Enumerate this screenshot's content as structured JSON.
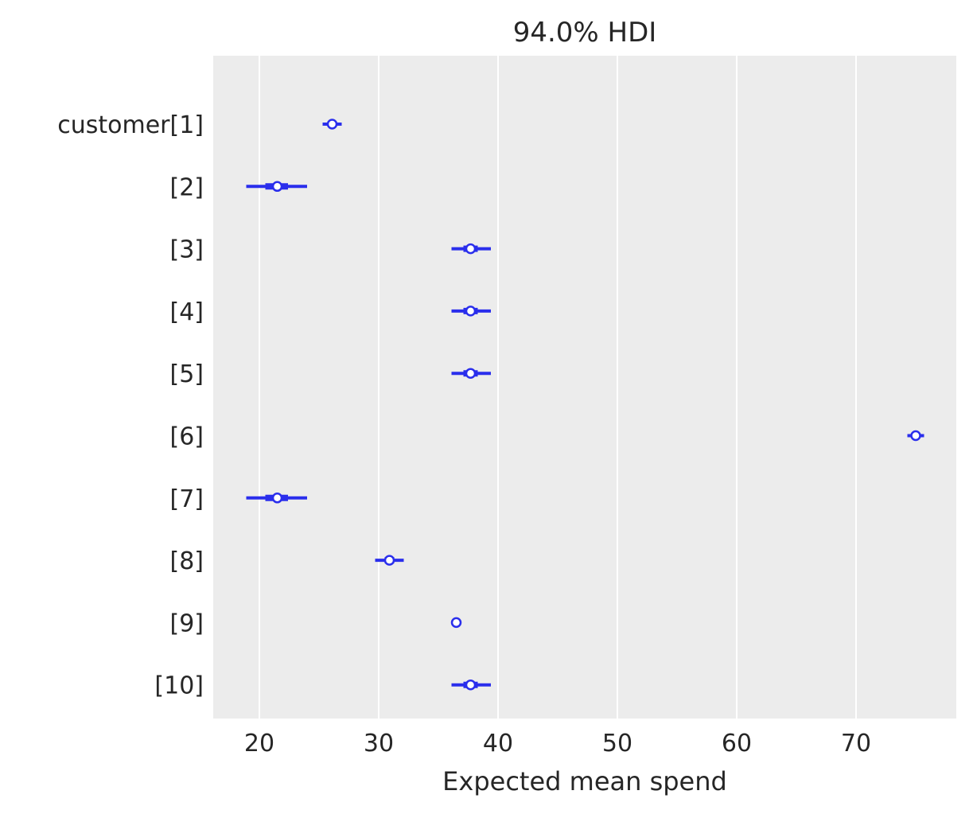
{
  "chart_data": {
    "type": "forest",
    "title": "94.0% HDI",
    "xlabel": "Expected mean spend",
    "ylabel": "",
    "xlim": [
      16.1,
      78.4
    ],
    "xticks": [
      20,
      30,
      40,
      50,
      60,
      70
    ],
    "grid": {
      "x": true,
      "y": false
    },
    "background": "#ececec",
    "color": "#2a2eec",
    "categories": [
      "customer[1]",
      "[2]",
      "[3]",
      "[4]",
      "[5]",
      "[6]",
      "[7]",
      "[8]",
      "[9]",
      "[10]"
    ],
    "series": [
      {
        "name": "customer",
        "points": [
          {
            "label": "customer[1]",
            "mean": 26.1,
            "hdi_low": 25.3,
            "hdi_high": 26.9,
            "iqr_low": 25.8,
            "iqr_high": 26.4
          },
          {
            "label": "[2]",
            "mean": 21.5,
            "hdi_low": 18.9,
            "hdi_high": 24.0,
            "iqr_low": 20.5,
            "iqr_high": 22.4
          },
          {
            "label": "[3]",
            "mean": 37.7,
            "hdi_low": 36.1,
            "hdi_high": 39.4,
            "iqr_low": 37.1,
            "iqr_high": 38.3
          },
          {
            "label": "[4]",
            "mean": 37.7,
            "hdi_low": 36.1,
            "hdi_high": 39.4,
            "iqr_low": 37.1,
            "iqr_high": 38.3
          },
          {
            "label": "[5]",
            "mean": 37.7,
            "hdi_low": 36.1,
            "hdi_high": 39.4,
            "iqr_low": 37.1,
            "iqr_high": 38.3
          },
          {
            "label": "[6]",
            "mean": 75.0,
            "hdi_low": 74.3,
            "hdi_high": 75.7,
            "iqr_low": 74.7,
            "iqr_high": 75.3
          },
          {
            "label": "[7]",
            "mean": 21.5,
            "hdi_low": 18.9,
            "hdi_high": 24.0,
            "iqr_low": 20.5,
            "iqr_high": 22.4
          },
          {
            "label": "[8]",
            "mean": 30.9,
            "hdi_low": 29.7,
            "hdi_high": 32.1,
            "iqr_low": 30.5,
            "iqr_high": 31.3
          },
          {
            "label": "[9]",
            "mean": 36.5,
            "hdi_low": 36.5,
            "hdi_high": 36.5,
            "iqr_low": 36.5,
            "iqr_high": 36.5
          },
          {
            "label": "[10]",
            "mean": 37.7,
            "hdi_low": 36.1,
            "hdi_high": 39.4,
            "iqr_low": 37.1,
            "iqr_high": 38.3
          }
        ]
      }
    ]
  }
}
